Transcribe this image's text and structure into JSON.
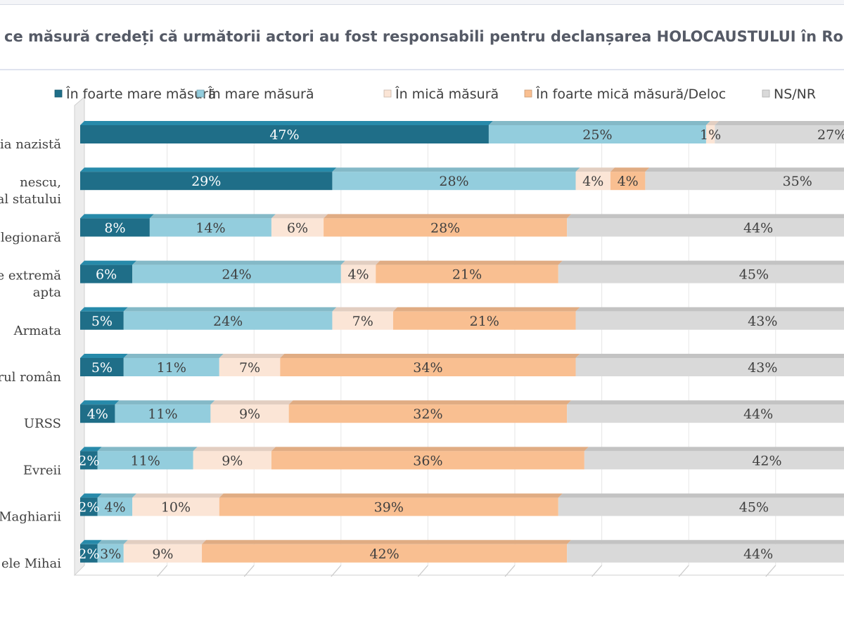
{
  "chart_data": {
    "type": "bar",
    "orientation": "horizontal",
    "stacked": true,
    "percent": true,
    "title": "ce măsură credeți că următorii actori au fost responsabili pentru declanșarea HOLOCAUSTULUI în Roma",
    "legend_position": "top",
    "series": [
      {
        "name": "În foarte mare măsură",
        "color": "#1f6e88",
        "values": [
          47,
          29,
          8,
          6,
          5,
          5,
          4,
          2,
          2,
          2
        ]
      },
      {
        "name": "În mare măsură",
        "color": "#93cddd",
        "values": [
          25,
          28,
          14,
          24,
          24,
          11,
          11,
          11,
          4,
          3
        ]
      },
      {
        "name": "În mică măsură",
        "color": "#fbe5d6",
        "values": [
          1,
          4,
          6,
          4,
          7,
          7,
          9,
          9,
          10,
          9
        ]
      },
      {
        "name": "În foarte mică măsură/Deloc",
        "color": "#f9bf91",
        "values": [
          0,
          4,
          28,
          21,
          21,
          34,
          32,
          36,
          39,
          42
        ]
      },
      {
        "name": "NS/NR",
        "color": "#d9d9d9",
        "values": [
          27,
          35,
          44,
          45,
          43,
          43,
          44,
          42,
          45,
          44
        ]
      }
    ],
    "categories": [
      [
        "ia nazistă"
      ],
      [
        "nescu,",
        "al statului"
      ],
      [
        "legionară"
      ],
      [
        "e extremă",
        "apta"
      ],
      [
        "Armata"
      ],
      [
        "rul român"
      ],
      [
        "URSS"
      ],
      [
        "Evreii"
      ],
      [
        "Maghiarii"
      ],
      [
        "ele Mihai"
      ]
    ],
    "xlim": [
      0,
      100
    ],
    "grid": true
  }
}
